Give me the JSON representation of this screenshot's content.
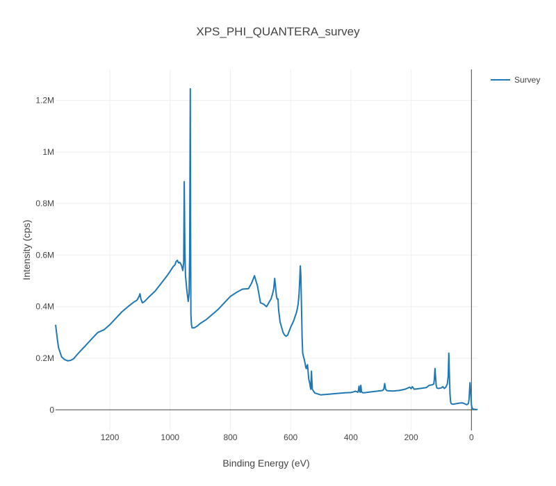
{
  "chart_data": {
    "type": "line",
    "title": "XPS_PHI_QUANTERA_survey",
    "xlabel": "Binding Energy (eV)",
    "ylabel": "Intensity (cps)",
    "x_reversed": true,
    "xlim": [
      1380,
      -20
    ],
    "ylim": [
      -80000,
      1320000
    ],
    "grid": true,
    "legend_position": "top-right",
    "xticks": [
      1200,
      1000,
      800,
      600,
      400,
      200,
      0
    ],
    "xtick_labels": [
      "1200",
      "1000",
      "800",
      "600",
      "400",
      "200",
      "0"
    ],
    "yticks": [
      0,
      200000,
      400000,
      600000,
      800000,
      1000000,
      1200000
    ],
    "ytick_labels": [
      "0",
      "0.2M",
      "0.4M",
      "0.6M",
      "0.8M",
      "1M",
      "1.2M"
    ],
    "series": [
      {
        "name": "Survey",
        "color": "#1f77b4",
        "x": [
          1380,
          1375,
          1370,
          1360,
          1350,
          1340,
          1330,
          1320,
          1310,
          1300,
          1280,
          1260,
          1240,
          1220,
          1200,
          1180,
          1160,
          1140,
          1120,
          1110,
          1103,
          1100,
          1097,
          1092,
          1085,
          1070,
          1050,
          1030,
          1010,
          1000,
          990,
          984,
          980,
          976,
          972,
          968,
          962,
          958,
          955,
          953,
          951,
          949,
          945,
          940,
          937,
          935,
          933,
          932,
          931,
          929,
          927,
          920,
          910,
          900,
          880,
          860,
          840,
          820,
          800,
          780,
          760,
          740,
          730,
          725,
          720,
          715,
          710,
          700,
          690,
          680,
          670,
          665,
          660,
          656,
          653,
          650,
          647,
          645,
          642,
          640,
          635,
          630,
          625,
          620,
          615,
          610,
          600,
          590,
          580,
          575,
          572,
          570,
          568,
          566,
          564,
          562,
          560,
          556,
          552,
          550,
          548,
          546,
          544,
          540,
          536,
          535,
          534,
          533,
          531,
          528,
          520,
          500,
          480,
          460,
          440,
          420,
          400,
          390,
          385,
          380,
          377,
          375,
          373,
          371,
          369,
          367,
          365,
          360,
          350,
          330,
          310,
          300,
          295,
          292,
          290,
          288,
          285,
          280,
          260,
          240,
          220,
          210,
          205,
          200,
          196,
          190,
          170,
          150,
          140,
          130,
          125,
          123,
          121,
          119,
          117,
          115,
          110,
          100,
          95,
          90,
          85,
          80,
          77,
          75,
          73,
          71,
          69,
          67,
          63,
          60,
          50,
          40,
          30,
          25,
          20,
          15,
          10,
          8,
          5,
          2,
          0,
          -2,
          -5,
          -10,
          -15,
          -20
        ],
        "y": [
          330000,
          280000,
          240000,
          205000,
          195000,
          190000,
          192000,
          198000,
          212000,
          225000,
          250000,
          275000,
          300000,
          310000,
          330000,
          355000,
          380000,
          400000,
          418000,
          425000,
          440000,
          450000,
          430000,
          415000,
          420000,
          438000,
          460000,
          490000,
          520000,
          537000,
          555000,
          562000,
          575000,
          580000,
          570000,
          572000,
          560000,
          540000,
          570000,
          885000,
          620000,
          520000,
          470000,
          420000,
          450000,
          600000,
          1245000,
          700000,
          370000,
          330000,
          318000,
          318000,
          325000,
          335000,
          350000,
          370000,
          390000,
          415000,
          440000,
          455000,
          468000,
          470000,
          490000,
          505000,
          520000,
          500000,
          480000,
          415000,
          410000,
          400000,
          420000,
          430000,
          450000,
          470000,
          510000,
          475000,
          440000,
          430000,
          430000,
          390000,
          340000,
          320000,
          300000,
          290000,
          285000,
          290000,
          320000,
          345000,
          380000,
          410000,
          450000,
          500000,
          558000,
          520000,
          400000,
          280000,
          220000,
          200000,
          180000,
          165000,
          160000,
          170000,
          175000,
          120000,
          100000,
          90000,
          85000,
          80000,
          150000,
          80000,
          65000,
          58000,
          60000,
          62000,
          64000,
          66000,
          67000,
          70000,
          72000,
          70000,
          68000,
          75000,
          92000,
          72000,
          68000,
          95000,
          70000,
          66000,
          67000,
          70000,
          73000,
          74000,
          75000,
          78000,
          85000,
          102000,
          80000,
          74000,
          73000,
          75000,
          80000,
          85000,
          88000,
          82000,
          90000,
          80000,
          83000,
          86000,
          95000,
          97000,
          100000,
          120000,
          160000,
          128000,
          95000,
          85000,
          83000,
          85000,
          90000,
          83000,
          88000,
          100000,
          130000,
          220000,
          130000,
          60000,
          30000,
          24000,
          22000,
          22000,
          24000,
          26000,
          27000,
          25000,
          22000,
          20000,
          25000,
          40000,
          105000,
          60000,
          20000,
          8000,
          3000,
          2000,
          1000,
          1000
        ]
      }
    ]
  }
}
